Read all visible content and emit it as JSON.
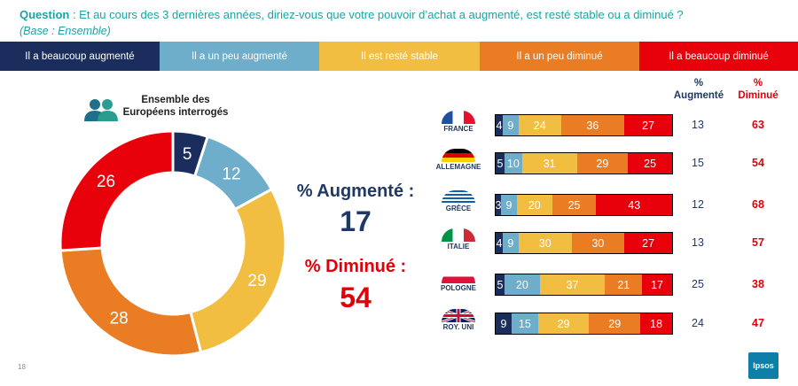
{
  "question": {
    "label": "Question",
    "text": " : Et au cours des 3 dernières années, diriez-vous que votre pouvoir d’achat a augmenté, est resté stable ou a diminué ?",
    "base": "(Base : Ensemble)"
  },
  "legend": [
    {
      "label": "Il a beaucoup augmenté",
      "color": "#1a2d5c"
    },
    {
      "label": "Il a un peu augmenté",
      "color": "#6eaecb"
    },
    {
      "label": "Il est resté stable",
      "color": "#f2be42"
    },
    {
      "label": "Il a un peu diminué",
      "color": "#ea7d23"
    },
    {
      "label": "Il a beaucoup diminué",
      "color": "#e8000b"
    }
  ],
  "donut": {
    "title": "Ensemble des Européens interrogés",
    "icon": "people-icon"
  },
  "kpi": {
    "up_label": "% Augmenté :",
    "up_value": "17",
    "down_label": "% Diminué :",
    "down_value": "54"
  },
  "columns": {
    "up_pct": "%",
    "up_word": "Augmenté",
    "down_pct": "%",
    "down_word": "Diminué"
  },
  "chart_data": [
    {
      "type": "pie",
      "title": "Ensemble des Européens interrogés",
      "categories": [
        "Il a beaucoup augmenté",
        "Il a un peu augmenté",
        "Il est resté stable",
        "Il a un peu diminué",
        "Il a beaucoup diminué"
      ],
      "values": [
        5,
        12,
        29,
        28,
        26
      ]
    },
    {
      "type": "bar",
      "stacked": true,
      "orientation": "horizontal",
      "categories": [
        "FRANCE",
        "ALLEMAGNE",
        "GRÈCE",
        "ITALIE",
        "POLOGNE",
        "ROY. UNI"
      ],
      "series": [
        {
          "name": "Il a beaucoup augmenté",
          "values": [
            4,
            5,
            3,
            4,
            5,
            9
          ]
        },
        {
          "name": "Il a un peu augmenté",
          "values": [
            9,
            10,
            9,
            9,
            20,
            15
          ]
        },
        {
          "name": "Il est resté stable",
          "values": [
            24,
            31,
            20,
            30,
            37,
            29
          ]
        },
        {
          "name": "Il a un peu diminué",
          "values": [
            36,
            29,
            25,
            30,
            21,
            29
          ]
        },
        {
          "name": "Il a beaucoup diminué",
          "values": [
            27,
            25,
            43,
            27,
            17,
            18
          ]
        }
      ],
      "augmente": [
        13,
        15,
        12,
        13,
        25,
        24
      ],
      "diminue": [
        63,
        54,
        68,
        57,
        38,
        47
      ]
    }
  ],
  "page_number": "18",
  "logo": "Ipsos"
}
